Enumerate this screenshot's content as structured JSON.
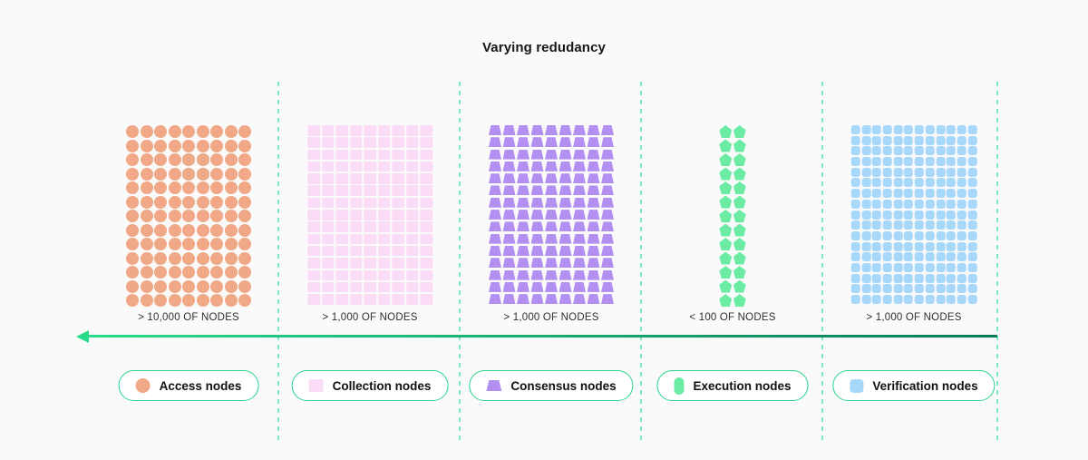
{
  "title": "Varying redudancy",
  "sections": [
    {
      "id": "access",
      "legend": "Access nodes",
      "label": "> 10,000 OF NODES",
      "shape": "circle",
      "cols": 9,
      "rows": 13,
      "color": "#F0A886"
    },
    {
      "id": "collection",
      "legend": "Collection nodes",
      "label": "> 1,000 OF NODES",
      "shape": "rect",
      "cols": 9,
      "rows": 15,
      "color": "#FBDCF7"
    },
    {
      "id": "consensus",
      "legend": "Consensus nodes",
      "label": "> 1,000 OF NODES",
      "shape": "trapezoid",
      "cols": 9,
      "rows": 15,
      "color": "#B28FF0"
    },
    {
      "id": "execution",
      "legend": "Execution nodes",
      "label": "< 100 OF NODES",
      "shape": "pentagon",
      "cols": 2,
      "rows": 13,
      "color": "#6CEBA5"
    },
    {
      "id": "verification",
      "legend": "Verification nodes",
      "label": "> 1,000 OF NODES",
      "shape": "rounded-square",
      "cols": 12,
      "rows": 17,
      "color": "#A7D7F9"
    }
  ],
  "colors": {
    "background": "#FAFAFA",
    "divider": "#7CEAC1",
    "arrow_start": "#29DB8A",
    "arrow_end": "#0A7B55",
    "pill_border": "#2BD58C"
  }
}
